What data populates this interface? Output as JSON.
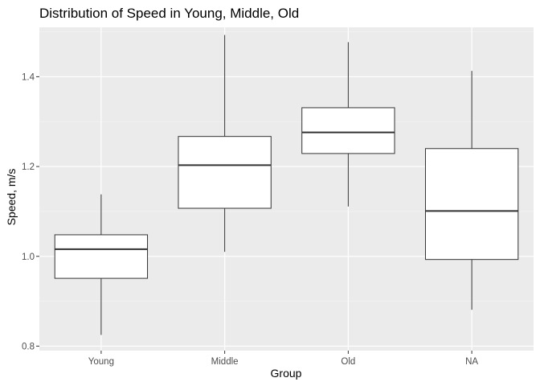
{
  "chart_data": {
    "type": "boxplot",
    "title": "Distribution of Speed in Young, Middle, Old",
    "xlabel": "Group",
    "ylabel": "Speed, m/s",
    "categories": [
      "Young",
      "Middle",
      "Old",
      "NA"
    ],
    "ylim": [
      0.79,
      1.51
    ],
    "yticks": [
      0.8,
      1.0,
      1.2,
      1.4
    ],
    "ytick_labels": [
      "0.8",
      "1.0",
      "1.2",
      "1.4"
    ],
    "grid": true,
    "legend": "none",
    "boxes": [
      {
        "category": "Young",
        "whisker_low": 0.825,
        "q1": 0.951,
        "median": 1.016,
        "q3": 1.048,
        "whisker_high": 1.138
      },
      {
        "category": "Middle",
        "whisker_low": 1.01,
        "q1": 1.107,
        "median": 1.203,
        "q3": 1.267,
        "whisker_high": 1.493
      },
      {
        "category": "Old",
        "whisker_low": 1.111,
        "q1": 1.229,
        "median": 1.276,
        "q3": 1.331,
        "whisker_high": 1.477
      },
      {
        "category": "NA",
        "whisker_low": 0.881,
        "q1": 0.993,
        "median": 1.101,
        "q3": 1.24,
        "whisker_high": 1.413
      }
    ],
    "colors": {
      "panel": "#ebebeb",
      "grid_major": "#ffffff",
      "grid_minor": "#f5f5f5",
      "box_fill": "#ffffff",
      "box_line": "#333333",
      "tick": "#333333"
    }
  }
}
